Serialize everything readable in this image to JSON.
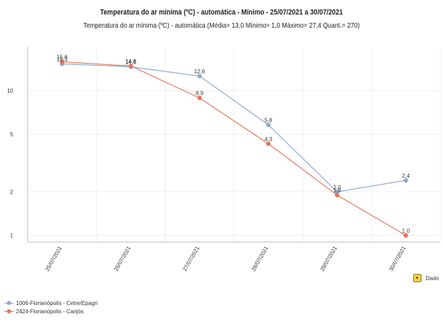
{
  "chart_data": {
    "type": "line",
    "title": "Temperatura do ar mínima (ºC) - automática - Mínimo - 25/07/2021 a 30/07/2021",
    "subtitle": "Temperatura do ar mínima (ºC) - automática (Média= 13,0  Mínimo= 1,0  Máximo= 27,4  Quant.= 270)",
    "categories": [
      "25/07/2021",
      "26/07/2021",
      "27/07/2021",
      "28/07/2021",
      "29/07/2021",
      "30/07/2021"
    ],
    "y_scale": "log",
    "y_ticks": [
      1,
      2,
      5,
      10
    ],
    "y_tick_labels": [
      "1",
      "2",
      "5",
      "10"
    ],
    "ylim": [
      0.9,
      20
    ],
    "grid": true,
    "legend_position": "bottom-left",
    "series": [
      {
        "name": "1006-Florianópolis - Cetre/Epagri",
        "color": "#8eaacb",
        "values": [
          15.3,
          14.6,
          12.6,
          5.8,
          2.0,
          2.4
        ],
        "labels": [
          "15.3",
          "14.6",
          "12.6",
          "5.8",
          "2.0",
          "2.4"
        ]
      },
      {
        "name": "2424-Florianópolis - Carijós",
        "color": "#e8735a",
        "values": [
          15.8,
          14.8,
          8.9,
          4.3,
          1.9,
          1.0
        ],
        "labels": [
          "15.8",
          "14.8",
          "8.9",
          "4.3",
          "1.9",
          "1.0"
        ]
      }
    ]
  },
  "ui": {
    "data_button_label": "Dado",
    "data_icon": "data-table-icon"
  }
}
